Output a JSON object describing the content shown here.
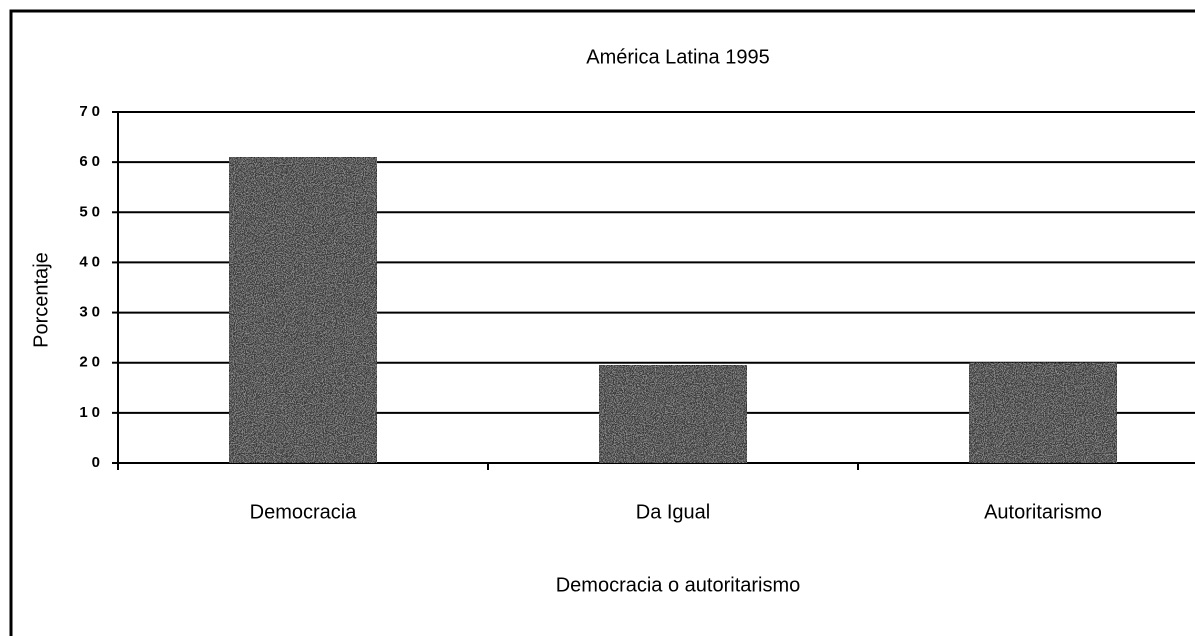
{
  "chart_data": {
    "type": "bar",
    "title": "América Latina 1995",
    "categories": [
      "Democracia",
      "Da Igual",
      "Autoritarismo"
    ],
    "values": [
      61,
      19.5,
      20
    ],
    "color": "#3c3c3c",
    "xlabel": "Democracia o autoritarismo",
    "ylabel": "Porcentaje",
    "ylim": [
      0,
      70
    ],
    "yticks": [
      0,
      10,
      20,
      30,
      40,
      50,
      60,
      70
    ],
    "grid": true
  }
}
